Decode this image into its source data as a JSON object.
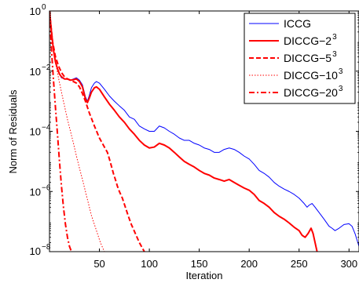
{
  "chart_data": {
    "type": "line",
    "title": "",
    "xlabel": "Iteration",
    "ylabel": "Norm of Residuals",
    "y_scale": "log",
    "xlim": [
      0,
      310
    ],
    "ylim": [
      1e-08,
      1
    ],
    "x_ticks": [
      50,
      100,
      150,
      200,
      250,
      300
    ],
    "x_tick_labels": [
      "50",
      "100",
      "150",
      "200",
      "250",
      "300"
    ],
    "y_ticks": [
      1e-08,
      1e-06,
      0.0001,
      0.01,
      1
    ],
    "y_tick_bases": [
      "10",
      "10",
      "10",
      "10",
      "10"
    ],
    "y_tick_exponents": [
      "−8",
      "−6",
      "−4",
      "−2",
      "0"
    ],
    "grid": false,
    "legend_position": "top-right",
    "series": [
      {
        "name": "ICCG",
        "name_base": "ICCG",
        "name_sup": "",
        "color": "#0000ff",
        "width": 1,
        "dash": "",
        "points": [
          [
            0,
            1
          ],
          [
            2,
            0.2
          ],
          [
            4,
            0.05
          ],
          [
            6,
            0.02
          ],
          [
            8,
            0.012
          ],
          [
            10,
            0.008
          ],
          [
            12,
            0.006
          ],
          [
            15,
            0.0055
          ],
          [
            18,
            0.0055
          ],
          [
            21,
            0.005
          ],
          [
            24,
            0.0055
          ],
          [
            27,
            0.006
          ],
          [
            30,
            0.005
          ],
          [
            33,
            0.0035
          ],
          [
            36,
            0.0014
          ],
          [
            38,
            0.001
          ],
          [
            40,
            0.0016
          ],
          [
            42,
            0.0028
          ],
          [
            45,
            0.004
          ],
          [
            47,
            0.0045
          ],
          [
            50,
            0.004
          ],
          [
            55,
            0.0025
          ],
          [
            60,
            0.0015
          ],
          [
            65,
            0.001
          ],
          [
            70,
            0.0007
          ],
          [
            75,
            0.0005
          ],
          [
            80,
            0.0003
          ],
          [
            85,
            0.00025
          ],
          [
            90,
            0.00015
          ],
          [
            95,
            0.00012
          ],
          [
            100,
            0.0001
          ],
          [
            105,
            0.0001
          ],
          [
            110,
            0.00015
          ],
          [
            115,
            0.00013
          ],
          [
            120,
            0.0001
          ],
          [
            125,
            8e-05
          ],
          [
            130,
            6e-05
          ],
          [
            135,
            5e-05
          ],
          [
            140,
            5e-05
          ],
          [
            145,
            4e-05
          ],
          [
            150,
            3.5e-05
          ],
          [
            155,
            2.8e-05
          ],
          [
            160,
            2.5e-05
          ],
          [
            165,
            2e-05
          ],
          [
            170,
            2e-05
          ],
          [
            175,
            2.5e-05
          ],
          [
            180,
            2.8e-05
          ],
          [
            185,
            2.5e-05
          ],
          [
            190,
            2e-05
          ],
          [
            195,
            1.5e-05
          ],
          [
            200,
            1.2e-05
          ],
          [
            205,
            8e-06
          ],
          [
            210,
            5e-06
          ],
          [
            215,
            4e-06
          ],
          [
            220,
            3e-06
          ],
          [
            225,
            2e-06
          ],
          [
            230,
            1.5e-06
          ],
          [
            235,
            1.2e-06
          ],
          [
            240,
            1e-06
          ],
          [
            245,
            8e-07
          ],
          [
            250,
            6e-07
          ],
          [
            255,
            4e-07
          ],
          [
            258,
            3e-07
          ],
          [
            260,
            3.5e-07
          ],
          [
            263,
            4e-07
          ],
          [
            266,
            3e-07
          ],
          [
            270,
            2e-07
          ],
          [
            275,
            1.2e-07
          ],
          [
            280,
            7e-08
          ],
          [
            283,
            6e-08
          ],
          [
            286,
            5e-08
          ],
          [
            290,
            6e-08
          ],
          [
            295,
            8e-08
          ],
          [
            300,
            8.5e-08
          ],
          [
            303,
            7e-08
          ],
          [
            306,
            4e-08
          ],
          [
            310,
            1.5e-08
          ]
        ]
      },
      {
        "name": "DICCG-2^3",
        "name_base": "DICCG−2",
        "name_sup": "3",
        "color": "#ff0000",
        "width": 2,
        "dash": "",
        "points": [
          [
            0,
            1
          ],
          [
            2,
            0.2
          ],
          [
            4,
            0.05
          ],
          [
            6,
            0.02
          ],
          [
            8,
            0.012
          ],
          [
            10,
            0.008
          ],
          [
            12,
            0.0065
          ],
          [
            15,
            0.0055
          ],
          [
            18,
            0.0055
          ],
          [
            21,
            0.005
          ],
          [
            24,
            0.0052
          ],
          [
            27,
            0.0055
          ],
          [
            30,
            0.0045
          ],
          [
            33,
            0.003
          ],
          [
            36,
            0.0012
          ],
          [
            38,
            0.0009
          ],
          [
            40,
            0.0013
          ],
          [
            42,
            0.002
          ],
          [
            45,
            0.0028
          ],
          [
            47,
            0.003
          ],
          [
            50,
            0.0025
          ],
          [
            55,
            0.0014
          ],
          [
            60,
            0.0008
          ],
          [
            65,
            0.0005
          ],
          [
            70,
            0.0003
          ],
          [
            75,
            0.0002
          ],
          [
            80,
            0.00012
          ],
          [
            85,
            8e-05
          ],
          [
            90,
            5e-05
          ],
          [
            95,
            3.5e-05
          ],
          [
            100,
            2.8e-05
          ],
          [
            105,
            3e-05
          ],
          [
            110,
            4e-05
          ],
          [
            115,
            3.5e-05
          ],
          [
            120,
            2.8e-05
          ],
          [
            125,
            2e-05
          ],
          [
            130,
            1.4e-05
          ],
          [
            135,
            1e-05
          ],
          [
            140,
            8e-06
          ],
          [
            145,
            6.5e-06
          ],
          [
            150,
            5e-06
          ],
          [
            155,
            4e-06
          ],
          [
            160,
            3.5e-06
          ],
          [
            165,
            2.8e-06
          ],
          [
            170,
            2.5e-06
          ],
          [
            175,
            2.2e-06
          ],
          [
            180,
            2.5e-06
          ],
          [
            185,
            2e-06
          ],
          [
            190,
            1.6e-06
          ],
          [
            195,
            1.3e-06
          ],
          [
            200,
            1.1e-06
          ],
          [
            205,
            8e-07
          ],
          [
            210,
            5e-07
          ],
          [
            215,
            4e-07
          ],
          [
            220,
            3e-07
          ],
          [
            225,
            2e-07
          ],
          [
            230,
            1.5e-07
          ],
          [
            235,
            1.2e-07
          ],
          [
            240,
            9e-08
          ],
          [
            245,
            6.5e-08
          ],
          [
            250,
            5e-08
          ],
          [
            253,
            3.5e-08
          ],
          [
            256,
            3e-08
          ],
          [
            259,
            4e-08
          ],
          [
            262,
            6e-08
          ],
          [
            264,
            4e-08
          ],
          [
            266,
            2e-08
          ],
          [
            268,
            1e-08
          ]
        ]
      },
      {
        "name": "DICCG-5^3",
        "name_base": "DICCG−5",
        "name_sup": "3",
        "color": "#ff0000",
        "width": 2,
        "dash": "6,3",
        "points": [
          [
            0,
            1
          ],
          [
            3,
            0.1
          ],
          [
            6,
            0.03
          ],
          [
            9,
            0.015
          ],
          [
            12,
            0.009
          ],
          [
            15,
            0.0065
          ],
          [
            18,
            0.0055
          ],
          [
            21,
            0.005
          ],
          [
            24,
            0.0045
          ],
          [
            27,
            0.004
          ],
          [
            30,
            0.003
          ],
          [
            33,
            0.0018
          ],
          [
            36,
            0.001
          ],
          [
            40,
            0.0004
          ],
          [
            45,
            0.00015
          ],
          [
            50,
            6e-05
          ],
          [
            55,
            3e-05
          ],
          [
            58,
            2e-05
          ],
          [
            60,
            1.2e-05
          ],
          [
            62,
            7e-06
          ],
          [
            64,
            4e-06
          ],
          [
            66,
            2.5e-06
          ],
          [
            68,
            1.5e-06
          ],
          [
            70,
            1e-06
          ],
          [
            73,
            6e-07
          ],
          [
            76,
            3e-07
          ],
          [
            79,
            1.5e-07
          ],
          [
            82,
            8e-08
          ],
          [
            86,
            4e-08
          ],
          [
            90,
            2e-08
          ],
          [
            95,
            1e-08
          ]
        ]
      },
      {
        "name": "DICCG-10^3",
        "name_base": "DICCG−10",
        "name_sup": "3",
        "color": "#ff0000",
        "width": 1,
        "dash": "1.5,2",
        "points": [
          [
            0,
            1
          ],
          [
            3,
            0.08
          ],
          [
            6,
            0.02
          ],
          [
            9,
            0.006
          ],
          [
            12,
            0.002
          ],
          [
            15,
            0.0007
          ],
          [
            18,
            0.00025
          ],
          [
            21,
            0.0001
          ],
          [
            24,
            4e-05
          ],
          [
            27,
            1.5e-05
          ],
          [
            30,
            6e-06
          ],
          [
            33,
            2.5e-06
          ],
          [
            36,
            1e-06
          ],
          [
            39,
            4e-07
          ],
          [
            42,
            1.6e-07
          ],
          [
            45,
            8e-08
          ],
          [
            48,
            4e-08
          ],
          [
            51,
            2e-08
          ],
          [
            55,
            1e-08
          ]
        ]
      },
      {
        "name": "DICCG-20^3",
        "name_base": "DICCG−20",
        "name_sup": "3",
        "color": "#ff0000",
        "width": 2,
        "dash": "7,3,2,3",
        "points": [
          [
            0,
            1
          ],
          [
            2,
            0.05
          ],
          [
            4,
            0.005
          ],
          [
            6,
            0.0006
          ],
          [
            8,
            8e-05
          ],
          [
            10,
            1e-05
          ],
          [
            12,
            1.5e-06
          ],
          [
            14,
            3e-07
          ],
          [
            16,
            8e-08
          ],
          [
            18,
            3e-08
          ],
          [
            20,
            1.5e-08
          ],
          [
            22,
            1e-08
          ]
        ]
      }
    ]
  }
}
